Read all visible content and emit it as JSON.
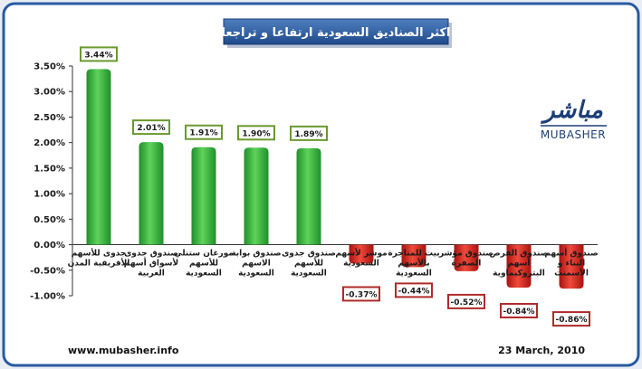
{
  "chart_data": {
    "type": "bar",
    "title": "اكثر الصناديق السعودية ارتفاعا و تراجعا",
    "categories": [
      [
        "جدوى للأسهم",
        "الأفريقية المدن"
      ],
      [
        "صندوق جدوى",
        "لأسواق أسهم",
        "العربية"
      ],
      [
        "مورغان ستنلي",
        "للأسهم",
        "السعودية"
      ],
      [
        "صندوق بوابة",
        "الاسهم",
        "السعودية"
      ],
      [
        "صندوق جدوى",
        "للأسهم",
        "السعودية"
      ],
      [
        "موشر لأسهم",
        "السعودية"
      ],
      [
        "بيت للمتاجرة",
        "بالأسهم",
        "السعودية"
      ],
      [
        "صندوق مؤشر",
        "الصفرة"
      ],
      [
        "صندوق الفرص",
        "أسهم",
        "البتروكيماوية"
      ],
      [
        "صندوق أسهم",
        "البناء و",
        "الأسمنت"
      ]
    ],
    "values": [
      3.44,
      2.01,
      1.91,
      1.9,
      1.89,
      -0.37,
      -0.44,
      -0.52,
      -0.84,
      -0.86
    ],
    "data_labels": [
      "3.44%",
      "2.01%",
      "1.91%",
      "1.90%",
      "1.89%",
      "-0.37%",
      "-0.44%",
      "-0.52%",
      "-0.84%",
      "-0.86%"
    ],
    "ylim": [
      -1.0,
      3.5
    ],
    "yticks": [
      3.5,
      3.0,
      2.5,
      2.0,
      1.5,
      1.0,
      0.5,
      0.0,
      -0.5,
      -1.0
    ],
    "ytick_labels": [
      "3.50%",
      "3.00%",
      "2.50%",
      "2.00%",
      "1.50%",
      "1.00%",
      "0.50%",
      "0.00%",
      "-0.50%",
      "-1.00%"
    ],
    "colors": {
      "positive": "#2fae3a",
      "negative": "#d7231f",
      "positive_border": "#6a9a2e",
      "negative_border": "#b02a2a"
    },
    "grid": false,
    "legend": "none"
  },
  "logo": {
    "arabic": "مباشر",
    "english": "MUBASHER"
  },
  "footer": {
    "website": "www.mubasher.info",
    "date": "23 March, 2010"
  }
}
